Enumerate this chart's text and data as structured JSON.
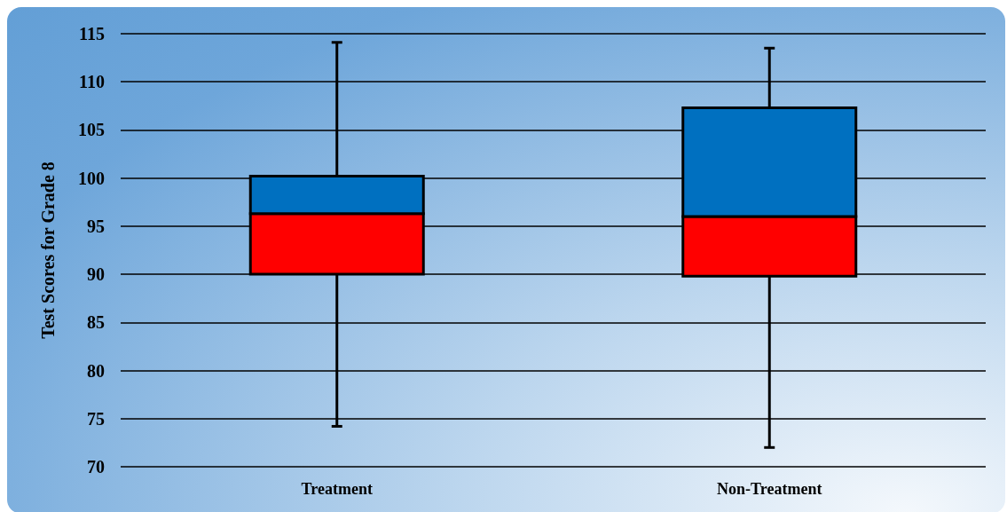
{
  "chart_data": {
    "type": "box",
    "ylabel": "Test Scores for Grade 8",
    "categories": [
      "Treatment",
      "Non-Treatment"
    ],
    "boxes": [
      {
        "low": 74.2,
        "q1": 90.0,
        "median": 96.3,
        "q3": 100.2,
        "high": 114.1
      },
      {
        "low": 72.0,
        "q1": 89.8,
        "median": 96.0,
        "q3": 107.3,
        "high": 113.5
      }
    ],
    "colors": [
      [
        "#ff0000",
        "#0070c0"
      ],
      [
        "#ff0000",
        "#0070c0"
      ]
    ],
    "ylim": [
      70,
      115
    ],
    "yticks": [
      70,
      75,
      80,
      85,
      90,
      95,
      100,
      105,
      110,
      115
    ],
    "grid": "y"
  }
}
